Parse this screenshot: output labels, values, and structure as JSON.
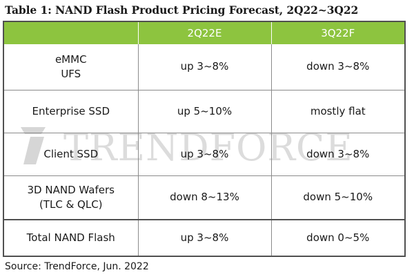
{
  "title": "Table 1: NAND Flash Product Pricing Forecast, 2Q22~3Q22",
  "columns": [
    "",
    "2Q22E",
    "3Q22F"
  ],
  "rows": [
    {
      "product": [
        "eMMC",
        "UFS"
      ],
      "q2": "up 3~8%",
      "q3": "down 3~8%"
    },
    {
      "product": [
        "Enterprise SSD"
      ],
      "q2": "up 5~10%",
      "q3": "mostly flat"
    },
    {
      "product": [
        "Client SSD"
      ],
      "q2": "up 3~8%",
      "q3": "down 3~8%"
    },
    {
      "product": [
        "3D NAND Wafers",
        "(TLC & QLC)"
      ],
      "q2": "down 8~13%",
      "q3": "down 5~10%"
    },
    {
      "product": [
        "Total NAND Flash"
      ],
      "q2": "up 3~8%",
      "q3": "down 0~5%"
    }
  ],
  "watermark": "TRENDFORCE",
  "source": "Source: TrendForce, Jun. 2022",
  "colors": {
    "header_bg": "#8dc43f",
    "header_text": "#ffffff",
    "border": "#505050",
    "watermark": "#d9d9d9"
  }
}
